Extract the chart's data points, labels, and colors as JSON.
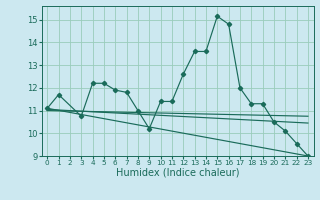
{
  "xlabel": "Humidex (Indice chaleur)",
  "bg_color": "#cce8f0",
  "grid_color": "#99ccbb",
  "line_color": "#1a6b5a",
  "xlim": [
    -0.5,
    23.5
  ],
  "ylim": [
    9.0,
    15.6
  ],
  "yticks": [
    9,
    10,
    11,
    12,
    13,
    14,
    15
  ],
  "xticks": [
    0,
    1,
    2,
    3,
    4,
    5,
    6,
    7,
    8,
    9,
    10,
    11,
    12,
    13,
    14,
    15,
    16,
    17,
    18,
    19,
    20,
    21,
    22,
    23
  ],
  "series_main": {
    "x": [
      0,
      1,
      3,
      4,
      5,
      6,
      7,
      8,
      9,
      10,
      11,
      12,
      13,
      14,
      15,
      16,
      17,
      18,
      19,
      20,
      21,
      22,
      23
    ],
    "y": [
      11.1,
      11.7,
      10.75,
      12.2,
      12.2,
      11.9,
      11.8,
      11.0,
      10.2,
      11.4,
      11.4,
      12.6,
      13.6,
      13.6,
      15.15,
      14.8,
      12.0,
      11.3,
      11.3,
      10.5,
      10.1,
      9.55,
      9.0
    ]
  },
  "trend_lines": [
    {
      "x": [
        0,
        23
      ],
      "y": [
        11.1,
        9.0
      ]
    },
    {
      "x": [
        0,
        23
      ],
      "y": [
        11.05,
        10.45
      ]
    },
    {
      "x": [
        0,
        23
      ],
      "y": [
        11.0,
        10.75
      ]
    }
  ],
  "ytick_fontsize": 6,
  "xtick_fontsize": 5.2,
  "xlabel_fontsize": 7
}
